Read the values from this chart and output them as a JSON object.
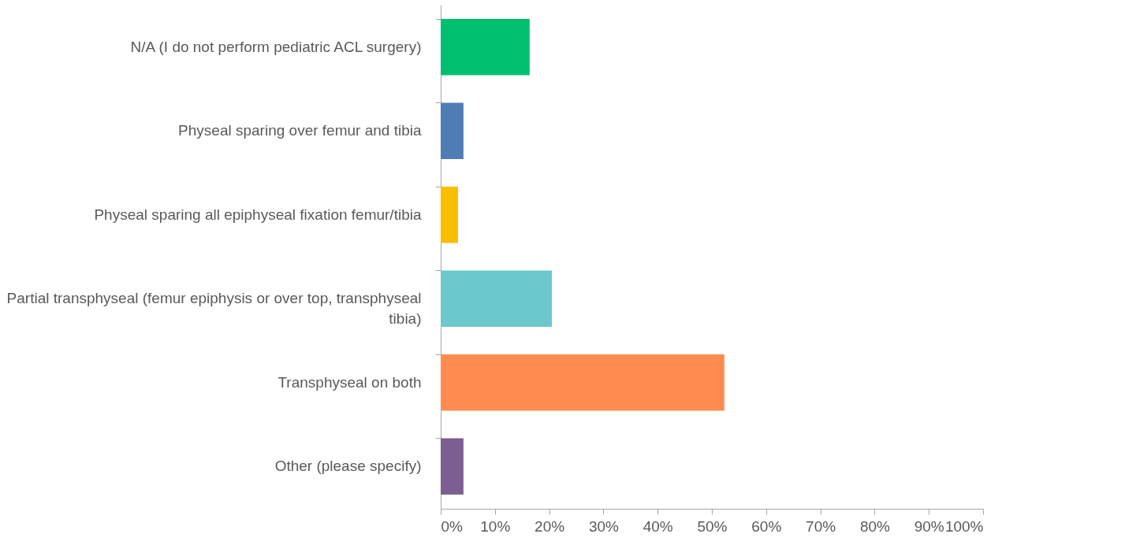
{
  "chart_data": {
    "type": "bar",
    "orientation": "horizontal",
    "categories": [
      "N/A (I do not perform pediatric ACL surgery)",
      "Physeal sparing over femur and tibia",
      "Physeal sparing all epiphyseal fixation femur/tibia",
      "Partial transphyseal (femur epiphysis or over top, transphyseal tibia)",
      "Transphyseal on both",
      "Other (please specify)"
    ],
    "values": [
      16.4,
      4.2,
      3.2,
      20.5,
      52.3,
      4.2
    ],
    "colors": [
      "#00bf6f",
      "#507cb6",
      "#f9be00",
      "#6bc8cd",
      "#ff8b4f",
      "#7d5e90"
    ],
    "xlim": [
      0,
      100
    ],
    "xticks": [
      {
        "value": 0,
        "label": "0%"
      },
      {
        "value": 10,
        "label": "10%"
      },
      {
        "value": 20,
        "label": "20%"
      },
      {
        "value": 30,
        "label": "30%"
      },
      {
        "value": 40,
        "label": "40%"
      },
      {
        "value": 50,
        "label": "50%"
      },
      {
        "value": 60,
        "label": "60%"
      },
      {
        "value": 70,
        "label": "70%"
      },
      {
        "value": 80,
        "label": "80%"
      },
      {
        "value": 90,
        "label": "90%"
      },
      {
        "value": 100,
        "label": "100%"
      }
    ],
    "grid": false,
    "legend": false
  }
}
